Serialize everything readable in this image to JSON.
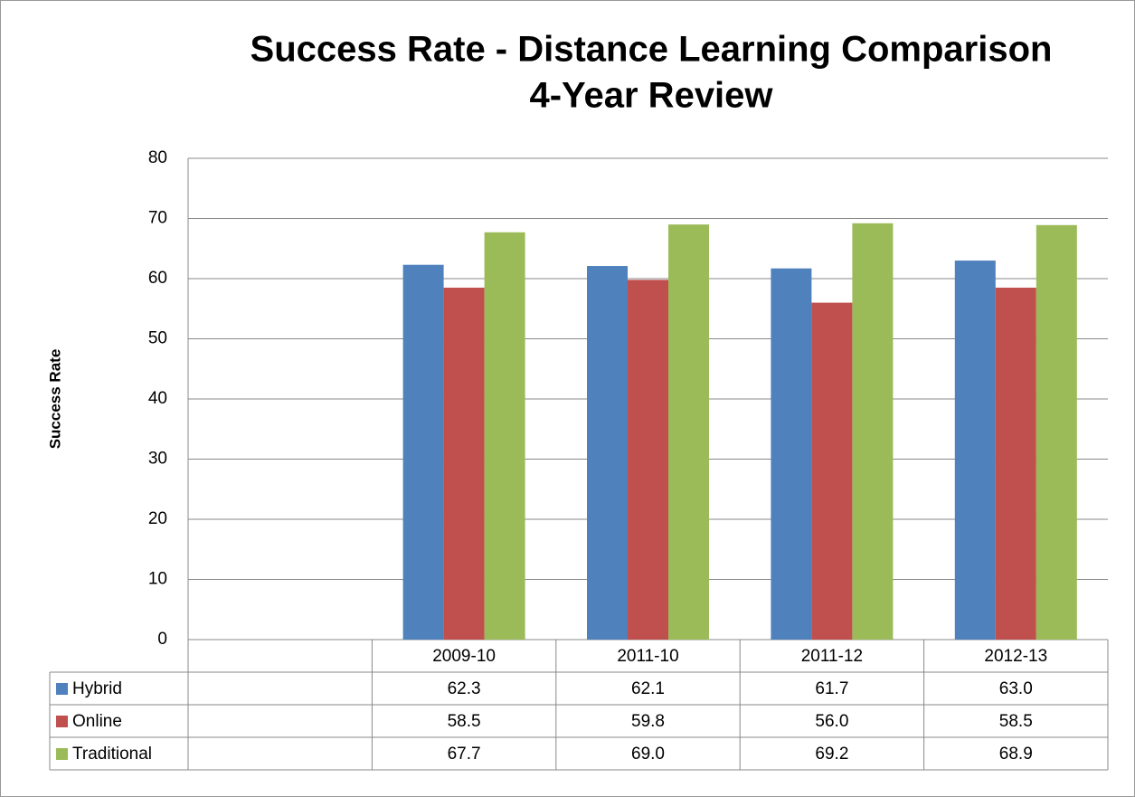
{
  "chart_data": {
    "type": "bar",
    "title": "Success Rate - Distance Learning Comparison",
    "subtitle": "4-Year Review",
    "y_label": "Success Rate",
    "categories": [
      null,
      "2009-10",
      "2011-10",
      "2011-12",
      "2012-13"
    ],
    "series": [
      {
        "name": "Hybrid",
        "color": "#4f81bd",
        "values": [
          null,
          62.3,
          62.1,
          61.7,
          63.0
        ],
        "value_labels": [
          null,
          "62.3",
          "62.1",
          "61.7",
          "63.0"
        ]
      },
      {
        "name": "Online",
        "color": "#c0504d",
        "values": [
          null,
          58.5,
          59.8,
          56.0,
          58.5
        ],
        "value_labels": [
          null,
          "58.5",
          "59.8",
          "56.0",
          "58.5"
        ]
      },
      {
        "name": "Traditional",
        "color": "#9bbb59",
        "values": [
          null,
          67.7,
          69.0,
          69.2,
          68.9
        ],
        "value_labels": [
          null,
          "67.7",
          "69.0",
          "69.2",
          "68.9"
        ]
      }
    ],
    "ylim": [
      0,
      80
    ],
    "yticks": [
      0,
      10,
      20,
      30,
      40,
      50,
      60,
      70,
      80
    ],
    "grid": true
  }
}
